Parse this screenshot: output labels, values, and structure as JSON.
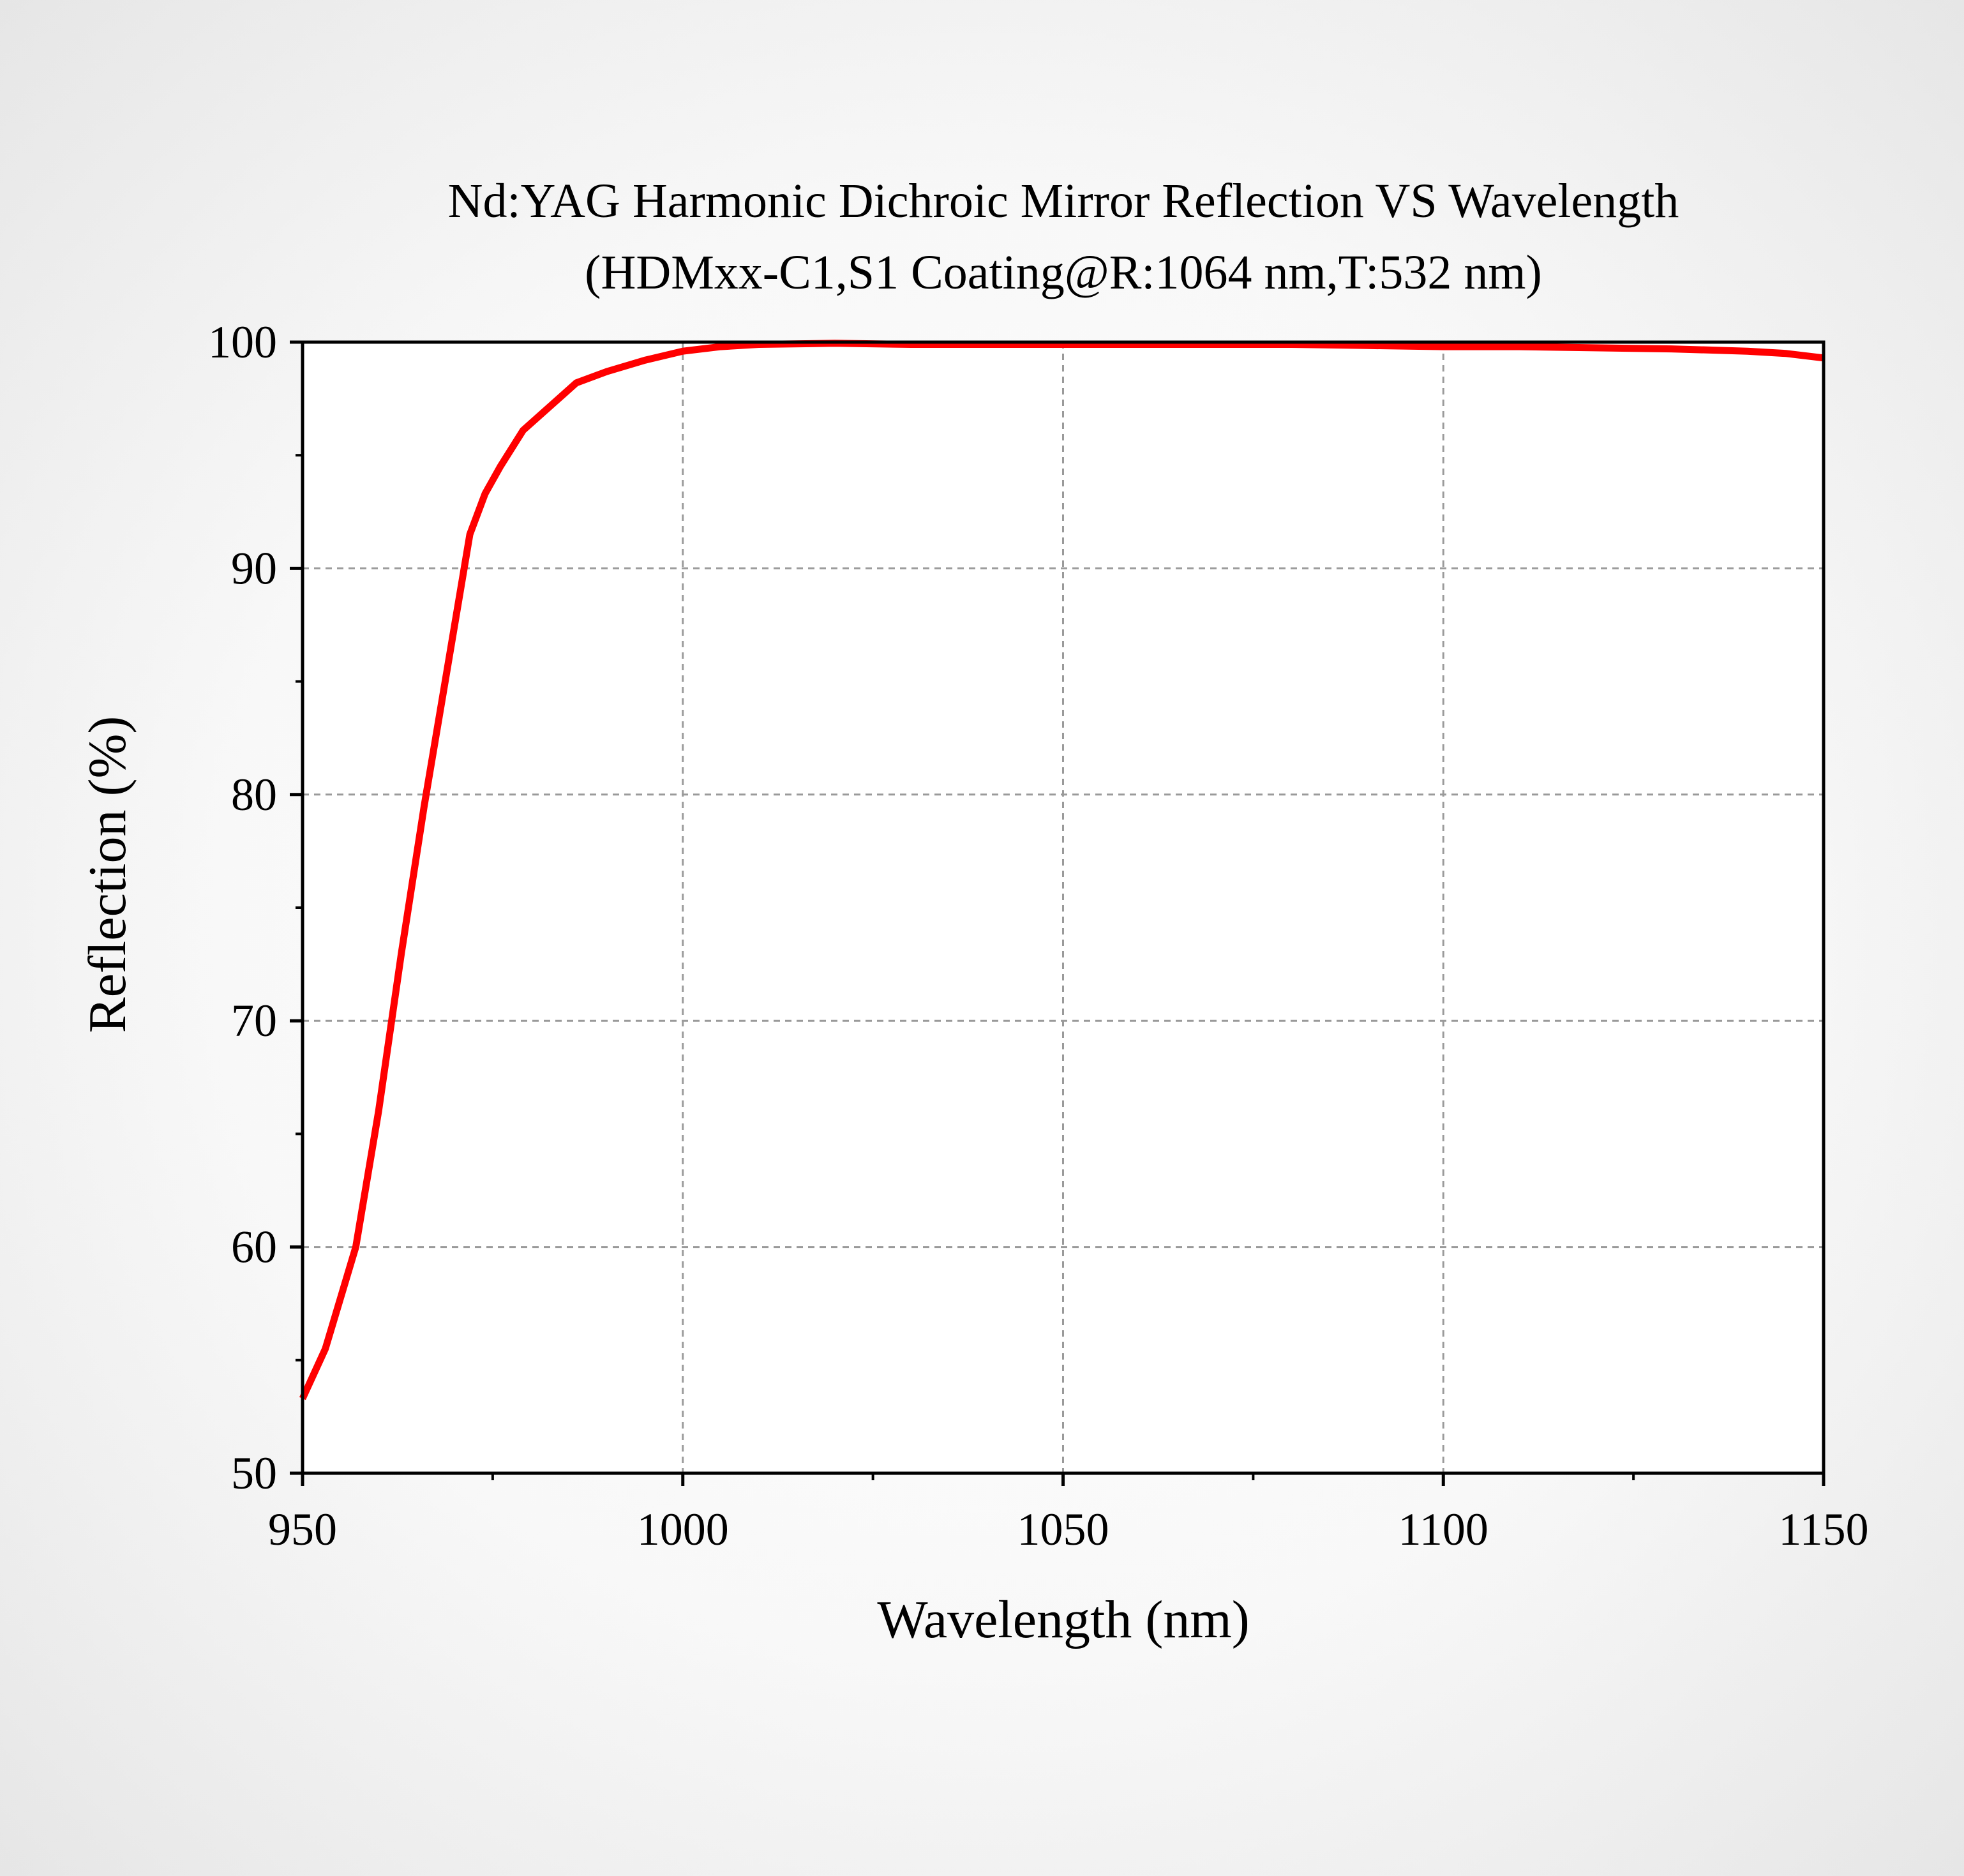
{
  "chart_data": {
    "type": "line",
    "title": "Nd:YAG Harmonic Dichroic Mirror Reflection VS Wavelength",
    "subtitle": "(HDMxx-C1,S1 Coating@R:1064 nm,T:532 nm)",
    "xlabel": "Wavelength (nm)",
    "ylabel": "Reflection (%)",
    "xlim": [
      950,
      1150
    ],
    "ylim": [
      50,
      100
    ],
    "x_ticks": [
      950,
      1000,
      1050,
      1100,
      1150
    ],
    "x_tick_labels": [
      "950",
      "1000",
      "1050",
      "1100",
      "1150"
    ],
    "y_ticks": [
      50,
      60,
      70,
      80,
      90,
      100
    ],
    "y_tick_labels": [
      "50",
      "60",
      "70",
      "80",
      "90",
      "100"
    ],
    "grid": true,
    "grid_style": "dashed",
    "legend": "none",
    "series_color": "#ff0000",
    "series": [
      {
        "x": [
          950,
          953,
          957,
          960,
          963,
          966,
          969,
          971,
          972,
          974,
          976,
          979,
          983,
          986,
          990,
          995,
          1000,
          1005,
          1010,
          1020,
          1030,
          1040,
          1050,
          1060,
          1070,
          1080,
          1090,
          1100,
          1110,
          1120,
          1130,
          1140,
          1145,
          1150
        ],
        "y": [
          53.3,
          55.5,
          60.0,
          66.0,
          73.0,
          79.5,
          85.5,
          89.5,
          91.5,
          93.3,
          94.5,
          96.1,
          97.3,
          98.2,
          98.7,
          99.2,
          99.6,
          99.8,
          99.9,
          99.95,
          99.9,
          99.9,
          99.9,
          99.9,
          99.9,
          99.9,
          99.85,
          99.8,
          99.8,
          99.75,
          99.7,
          99.6,
          99.5,
          99.3
        ]
      }
    ]
  }
}
